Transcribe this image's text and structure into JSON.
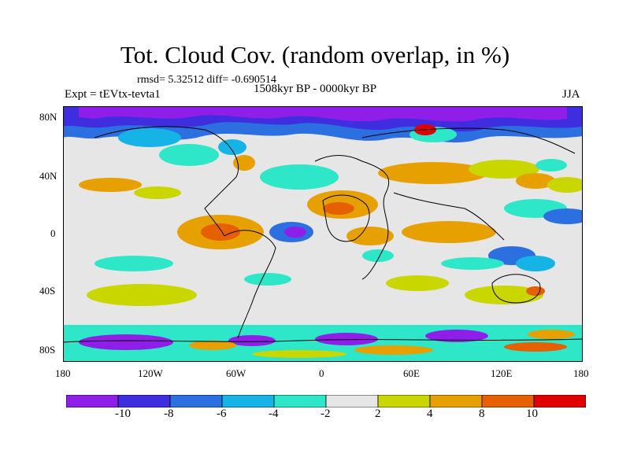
{
  "title": "Tot. Cloud Cov. (random overlap, in %)",
  "stats": "rmsd= 5.32512 diff= -0.690514",
  "experiment": "Expt = tEVtx-tevta1",
  "period": "1508kyr BP - 0000kyr BP",
  "season": "JJA",
  "lat_ticks": [
    "80N",
    "40N",
    "0",
    "40S",
    "80S"
  ],
  "lon_ticks": [
    "180",
    "120W",
    "60W",
    "0",
    "60E",
    "120E",
    "180"
  ],
  "colorbar": {
    "labels": [
      "-10",
      "-8",
      "-6",
      "-4",
      "-2",
      "2",
      "4",
      "8",
      "10"
    ],
    "colors": [
      "#8f1fe8",
      "#3f2de0",
      "#2b6fe0",
      "#15b3e6",
      "#2ee6c8",
      "#e6e6e6",
      "#c9d600",
      "#e6a000",
      "#e65f00",
      "#e00000"
    ]
  }
}
